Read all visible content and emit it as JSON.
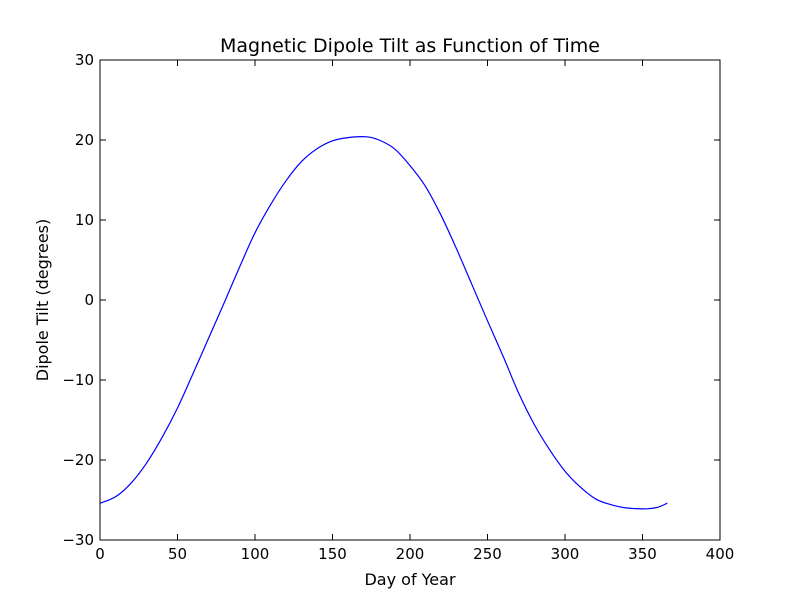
{
  "chart_data": {
    "type": "line",
    "title": "Magnetic Dipole Tilt as Function of Time",
    "xlabel": "Day of Year",
    "ylabel": "Dipole Tilt (degrees)",
    "xlim": [
      0,
      400
    ],
    "ylim": [
      -30,
      30
    ],
    "xticks": [
      0,
      50,
      100,
      150,
      200,
      250,
      300,
      350,
      400
    ],
    "yticks": [
      -30,
      -20,
      -10,
      0,
      10,
      20,
      30
    ],
    "xtick_labels": [
      "0",
      "50",
      "100",
      "150",
      "200",
      "250",
      "300",
      "350",
      "400"
    ],
    "ytick_labels": [
      "−30",
      "−20",
      "−10",
      "0",
      "10",
      "20",
      "30"
    ],
    "grid": false,
    "series": [
      {
        "color": "#0000ff",
        "x": [
          0,
          10,
          20,
          30,
          40,
          50,
          60,
          70,
          80,
          90,
          100,
          110,
          120,
          130,
          140,
          150,
          160,
          172,
          180,
          190,
          200,
          210,
          220,
          230,
          240,
          250,
          260,
          270,
          280,
          290,
          300,
          310,
          320,
          330,
          340,
          353,
          360,
          366
        ],
        "y": [
          -25.4,
          -24.6,
          -22.9,
          -20.4,
          -17.2,
          -13.5,
          -9.2,
          -4.8,
          -0.4,
          4.1,
          8.4,
          11.9,
          14.9,
          17.3,
          18.9,
          19.9,
          20.3,
          20.4,
          20.0,
          18.9,
          16.8,
          14.2,
          10.6,
          6.4,
          1.9,
          -2.6,
          -7.0,
          -11.6,
          -15.5,
          -18.7,
          -21.4,
          -23.4,
          -24.9,
          -25.6,
          -26.0,
          -26.1,
          -25.9,
          -25.4
        ]
      }
    ]
  }
}
